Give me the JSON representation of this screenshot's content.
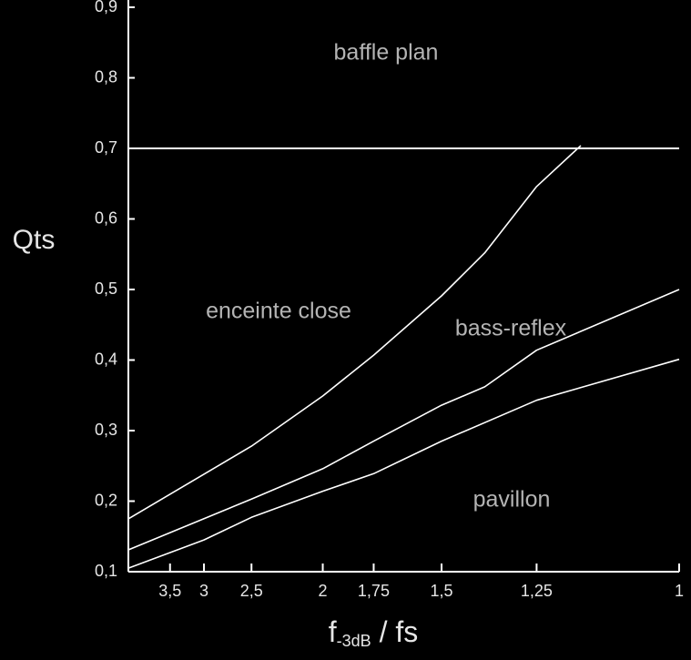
{
  "chart_data": {
    "type": "line",
    "ylabel": "Qts",
    "xlabel": {
      "main": "f",
      "sub": "-3dB",
      "rest": " / fs"
    },
    "xscale": "reciprocal",
    "xlim": [
      4.4,
      1
    ],
    "xticks": [
      {
        "value": 3.5,
        "label": "3,5"
      },
      3,
      {
        "value": 2.5,
        "label": "2,5"
      },
      2,
      {
        "value": 1.75,
        "label": "1,75"
      },
      {
        "value": 1.5,
        "label": "1,5"
      },
      {
        "value": 1.25,
        "label": "1,25"
      },
      1
    ],
    "ylim": [
      0.1,
      0.9
    ],
    "yticks": [
      {
        "value": 0.1,
        "label": "0,1"
      },
      {
        "value": 0.2,
        "label": "0,2"
      },
      {
        "value": 0.3,
        "label": "0,3"
      },
      {
        "value": 0.4,
        "label": "0,4"
      },
      {
        "value": 0.5,
        "label": "0,5"
      },
      {
        "value": 0.6,
        "label": "0,6"
      },
      {
        "value": 0.7,
        "label": "0,7"
      },
      {
        "value": 0.8,
        "label": "0,8"
      },
      {
        "value": 0.9,
        "label": "0,9"
      }
    ],
    "hlines": [
      0.7
    ],
    "series": [
      {
        "color": "#ffffff",
        "x": [
          4.4,
          2.5,
          2,
          1.75,
          1.5,
          1.375,
          1.25,
          1.16
        ],
        "values": [
          0.175,
          0.278,
          0.349,
          0.407,
          0.491,
          0.552,
          0.646,
          0.704
        ]
      },
      {
        "color": "#ffffff",
        "x": [
          4.4,
          2.5,
          2,
          1.75,
          1.5,
          1.375,
          1.25,
          1
        ],
        "values": [
          0.131,
          0.203,
          0.246,
          0.285,
          0.336,
          0.362,
          0.414,
          0.5
        ]
      },
      {
        "color": "#ffffff",
        "x": [
          4.4,
          3,
          2.5,
          2,
          1.75,
          1.5,
          1.25,
          1
        ],
        "values": [
          0.105,
          0.145,
          0.177,
          0.214,
          0.239,
          0.285,
          0.343,
          0.401
        ]
      }
    ],
    "annotations": [
      "baffle plan",
      "enceinte close",
      "bass-reflex",
      "pavillon"
    ],
    "color": "#ffffff",
    "background": "#000000"
  }
}
